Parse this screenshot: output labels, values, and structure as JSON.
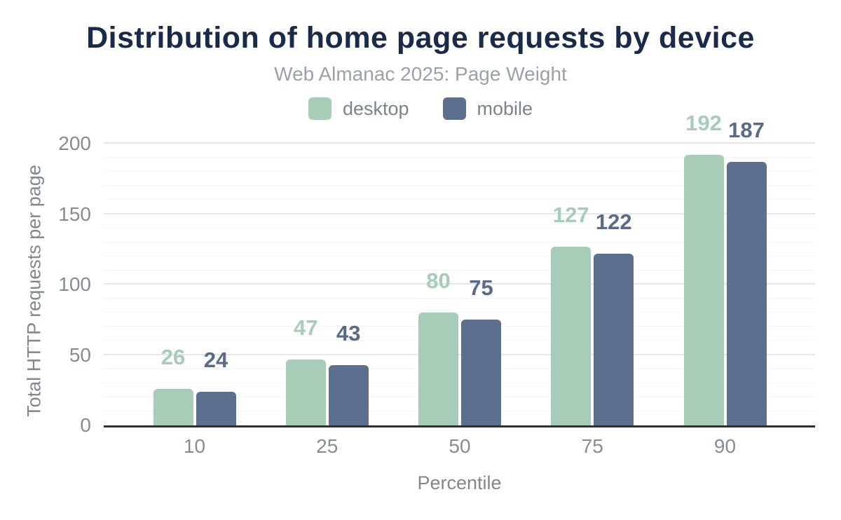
{
  "chart_data": {
    "type": "bar",
    "title": "Distribution of home page requests by device",
    "subtitle": "Web Almanac 2025: Page Weight",
    "categories": [
      "10",
      "25",
      "50",
      "75",
      "90"
    ],
    "series": [
      {
        "name": "desktop",
        "color": "#a7ccb7",
        "label_color": "#a7ccb7",
        "values": [
          26,
          47,
          80,
          127,
          192
        ]
      },
      {
        "name": "mobile",
        "color": "#5d6f8e",
        "label_color": "#5a6a87",
        "values": [
          24,
          43,
          75,
          122,
          187
        ]
      }
    ],
    "xlabel": "Percentile",
    "ylabel": "Total HTTP requests per page",
    "ylim": [
      0,
      200
    ],
    "yticks": [
      0,
      50,
      100,
      150,
      200
    ],
    "ytick_step": 50,
    "minor_grid_step": 10,
    "grid": "horizontal",
    "legend_position": "top",
    "accent_colors": {
      "title": "#1a2b49",
      "subtitle": "#9aa1aa",
      "axis_text": "#858c96",
      "baseline": "#303030",
      "major_grid": "#e5e6e9",
      "minor_grid": "#f3f4f6"
    }
  }
}
